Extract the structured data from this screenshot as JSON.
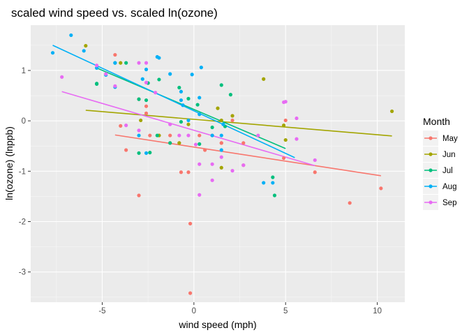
{
  "chart_data": {
    "type": "scatter",
    "title": "scaled wind speed vs. scaled ln(ozone)",
    "xlabel": "wind speed (mph)",
    "ylabel": "ln(ozone) (lnppb)",
    "xlim": [
      -8.9,
      11.5
    ],
    "ylim": [
      -3.6,
      1.9
    ],
    "x_ticks": [
      -5,
      0,
      5,
      10
    ],
    "y_ticks": [
      -3,
      -2,
      -1,
      0,
      1
    ],
    "x_tick_labels": [
      "-5",
      "0",
      "5",
      "10"
    ],
    "y_tick_labels": [
      "-3",
      "-2",
      "-1",
      "0",
      "1"
    ],
    "grid": true,
    "legend": {
      "title": "Month",
      "placement": "right"
    },
    "series": [
      {
        "name": "May",
        "color": "#F8766D",
        "points": [
          [
            -4.3,
            1.31
          ],
          [
            -4.0,
            -0.1
          ],
          [
            -3.7,
            -0.58
          ],
          [
            -3.0,
            -1.48
          ],
          [
            -3.0,
            0.43
          ],
          [
            -2.6,
            0.29
          ],
          [
            -2.6,
            0.15
          ],
          [
            -2.4,
            -0.29
          ],
          [
            -1.9,
            -0.29
          ],
          [
            -1.3,
            -0.29
          ],
          [
            -1.3,
            -0.44
          ],
          [
            -0.8,
            -0.44
          ],
          [
            -0.7,
            -1.02
          ],
          [
            -0.3,
            -1.02
          ],
          [
            -0.2,
            -2.04
          ],
          [
            -0.2,
            -3.42
          ],
          [
            0.3,
            -0.29
          ],
          [
            0.6,
            -0.58
          ],
          [
            1.0,
            -0.29
          ],
          [
            1.5,
            -0.44
          ],
          [
            1.5,
            -0.44
          ],
          [
            2.1,
            0.1
          ],
          [
            2.1,
            0.01
          ],
          [
            2.7,
            -0.88
          ],
          [
            2.7,
            -0.44
          ],
          [
            4.9,
            -0.74
          ],
          [
            5.0,
            0.01
          ],
          [
            6.6,
            -1.02
          ],
          [
            8.5,
            -1.63
          ],
          [
            10.2,
            -1.34
          ]
        ],
        "fit": [
          [
            -4.3,
            -0.28
          ],
          [
            10.2,
            -1.09
          ]
        ]
      },
      {
        "name": "Jun",
        "color": "#A3A500",
        "points": [
          [
            -5.9,
            1.49
          ],
          [
            -4.0,
            1.15
          ],
          [
            -2.9,
            0.01
          ],
          [
            -1.9,
            -0.29
          ],
          [
            -0.8,
            -0.44
          ],
          [
            -0.3,
            -0.07
          ],
          [
            1.3,
            0.25
          ],
          [
            1.5,
            -0.93
          ],
          [
            1.5,
            0.01
          ],
          [
            2.1,
            0.1
          ],
          [
            3.8,
            0.83
          ],
          [
            4.9,
            -0.09
          ],
          [
            5.0,
            -0.38
          ],
          [
            10.8,
            0.19
          ]
        ],
        "fit": [
          [
            -5.9,
            0.21
          ],
          [
            10.8,
            -0.3
          ]
        ]
      },
      {
        "name": "Jul",
        "color": "#00BF7D",
        "points": [
          [
            -5.3,
            0.74
          ],
          [
            -5.3,
            0.73
          ],
          [
            -4.3,
            1.15
          ],
          [
            -3.7,
            1.15
          ],
          [
            -3.0,
            -0.64
          ],
          [
            -3.0,
            0.43
          ],
          [
            -2.6,
            0.41
          ],
          [
            -2.5,
            0.75
          ],
          [
            -2.4,
            -0.63
          ],
          [
            -2.0,
            -0.29
          ],
          [
            -1.3,
            -0.44
          ],
          [
            -1.9,
            0.82
          ],
          [
            -0.8,
            0.66
          ],
          [
            -0.7,
            -0.02
          ],
          [
            -0.3,
            0.44
          ],
          [
            0.2,
            0.32
          ],
          [
            0.3,
            -0.46
          ],
          [
            1.0,
            -0.13
          ],
          [
            1.5,
            0.71
          ],
          [
            1.7,
            -0.11
          ],
          [
            2.0,
            0.52
          ],
          [
            4.3,
            -1.12
          ],
          [
            4.4,
            -1.48
          ]
        ],
        "fit": [
          [
            -5.3,
            1.05
          ],
          [
            5.0,
            -0.55
          ]
        ]
      },
      {
        "name": "Aug",
        "color": "#00B0F6",
        "points": [
          [
            -7.7,
            1.35
          ],
          [
            -6.7,
            1.7
          ],
          [
            -6.0,
            1.39
          ],
          [
            -5.3,
            1.05
          ],
          [
            -4.8,
            0.91
          ],
          [
            -4.3,
            0.67
          ],
          [
            -4.3,
            1.15
          ],
          [
            -2.8,
            0.83
          ],
          [
            -3.0,
            -0.29
          ],
          [
            -2.6,
            -0.64
          ],
          [
            -2.6,
            1.02
          ],
          [
            -2.0,
            1.27
          ],
          [
            -1.9,
            1.25
          ],
          [
            -1.3,
            0.93
          ],
          [
            -0.7,
            0.58
          ],
          [
            -0.7,
            0.41
          ],
          [
            -0.6,
            0.31
          ],
          [
            -0.3,
            0.01
          ],
          [
            -0.1,
            0.92
          ],
          [
            0.3,
            0.13
          ],
          [
            0.3,
            0.46
          ],
          [
            0.4,
            1.06
          ],
          [
            1.0,
            -0.29
          ],
          [
            1.5,
            -0.29
          ],
          [
            1.5,
            -0.58
          ],
          [
            1.6,
            -0.07
          ],
          [
            3.8,
            -1.23
          ],
          [
            4.3,
            -1.23
          ]
        ],
        "fit": [
          [
            -7.7,
            1.5
          ],
          [
            5.5,
            -0.73
          ]
        ]
      },
      {
        "name": "Sep",
        "color": "#E76BF3",
        "points": [
          [
            -7.2,
            0.87
          ],
          [
            -5.3,
            1.1
          ],
          [
            -4.8,
            0.93
          ],
          [
            -4.3,
            0.69
          ],
          [
            -3.7,
            -0.09
          ],
          [
            -3.0,
            1.15
          ],
          [
            -3.0,
            -0.19
          ],
          [
            -2.6,
            1.15
          ],
          [
            -2.6,
            0.76
          ],
          [
            -2.1,
            0.56
          ],
          [
            -1.3,
            -0.07
          ],
          [
            -0.8,
            -0.29
          ],
          [
            -0.3,
            -0.29
          ],
          [
            0.1,
            -0.47
          ],
          [
            0.3,
            -1.47
          ],
          [
            0.3,
            -0.86
          ],
          [
            1.0,
            -0.86
          ],
          [
            1.0,
            -1.18
          ],
          [
            1.5,
            -0.72
          ],
          [
            2.1,
            -0.99
          ],
          [
            2.7,
            -0.88
          ],
          [
            3.5,
            -0.29
          ],
          [
            4.9,
            0.37
          ],
          [
            5.0,
            0.38
          ],
          [
            5.6,
            0.05
          ],
          [
            5.6,
            -0.36
          ],
          [
            6.6,
            -0.78
          ]
        ],
        "fit": [
          [
            -7.2,
            0.58
          ],
          [
            6.6,
            -0.89
          ]
        ]
      }
    ]
  }
}
